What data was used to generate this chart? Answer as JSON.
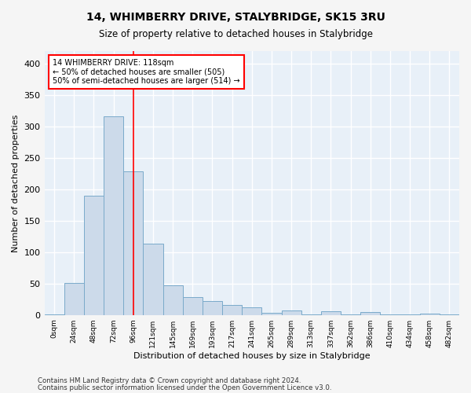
{
  "title": "14, WHIMBERRY DRIVE, STALYBRIDGE, SK15 3RU",
  "subtitle": "Size of property relative to detached houses in Stalybridge",
  "xlabel": "Distribution of detached houses by size in Stalybridge",
  "ylabel": "Number of detached properties",
  "bar_color": "#ccdaea",
  "bar_edge_color": "#7aaaca",
  "background_color": "#e8f0f8",
  "fig_facecolor": "#f5f5f5",
  "grid_color": "#ffffff",
  "categories": [
    "0sqm",
    "24sqm",
    "48sqm",
    "72sqm",
    "96sqm",
    "121sqm",
    "145sqm",
    "169sqm",
    "193sqm",
    "217sqm",
    "241sqm",
    "265sqm",
    "289sqm",
    "313sqm",
    "337sqm",
    "362sqm",
    "386sqm",
    "410sqm",
    "434sqm",
    "458sqm",
    "482sqm"
  ],
  "values": [
    1,
    51,
    190,
    316,
    228,
    113,
    47,
    29,
    22,
    16,
    12,
    4,
    7,
    1,
    6,
    1,
    5,
    1,
    1,
    2,
    1
  ],
  "ylim": [
    0,
    420
  ],
  "yticks": [
    0,
    50,
    100,
    150,
    200,
    250,
    300,
    350,
    400
  ],
  "vline_x": 4.0,
  "annotation_line1": "14 WHIMBERRY DRIVE: 118sqm",
  "annotation_line2": "← 50% of detached houses are smaller (505)",
  "annotation_line3": "50% of semi-detached houses are larger (514) →",
  "footer1": "Contains HM Land Registry data © Crown copyright and database right 2024.",
  "footer2": "Contains public sector information licensed under the Open Government Licence v3.0."
}
